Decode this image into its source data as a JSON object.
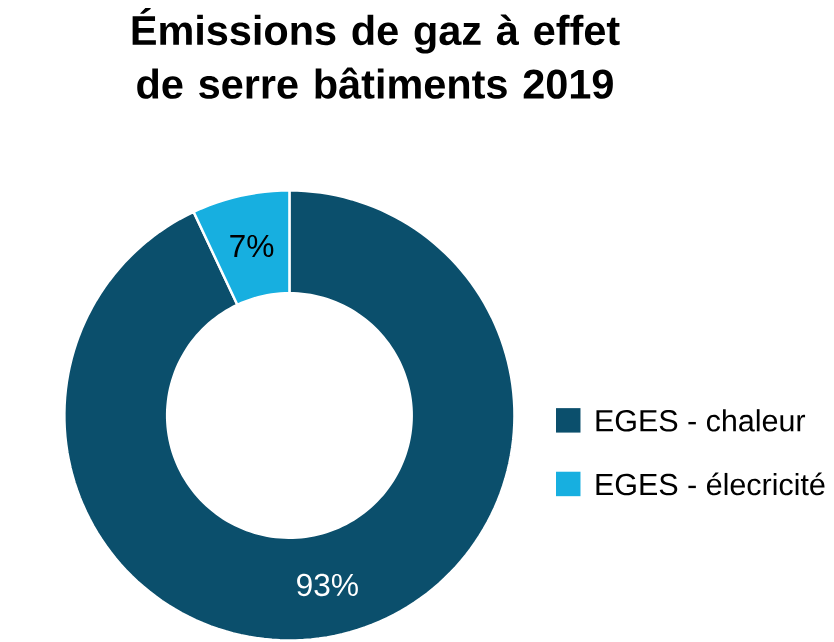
{
  "chart_data": {
    "type": "donut",
    "title": "Émissions de gaz à effet de serre bâtiments 2019",
    "categories": [
      "EGES - chaleur",
      "EGES - élecricité"
    ],
    "values": [
      93,
      7
    ],
    "colors": [
      "#0b4f6c",
      "#17afe0"
    ],
    "value_labels": [
      "93%",
      "7%"
    ],
    "legend": "right"
  }
}
